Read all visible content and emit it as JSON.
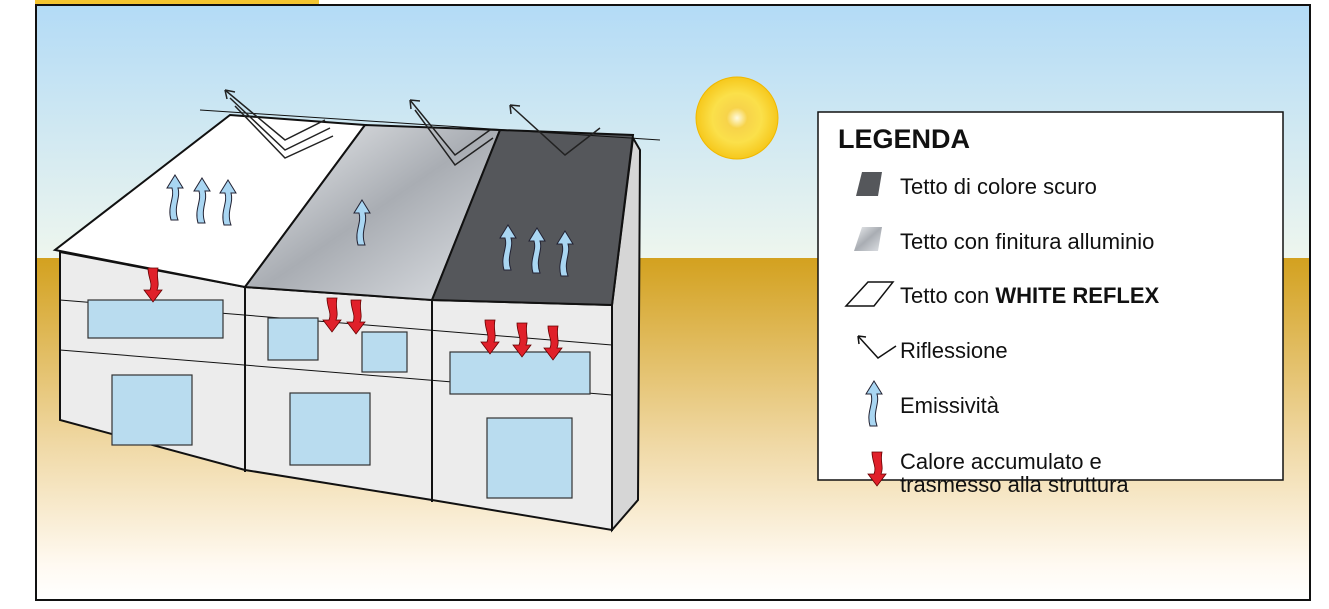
{
  "legend": {
    "title": "LEGENDA",
    "items": [
      {
        "text": "Tetto di colore scuro"
      },
      {
        "text": "Tetto con finitura alluminio"
      },
      {
        "text": "Tetto con ",
        "bold": "WHITE REFLEX"
      },
      {
        "text": "Riflessione"
      },
      {
        "text": "Emissività"
      },
      {
        "lines": [
          "Calore accumulato e",
          "trasmesso alla struttura"
        ]
      }
    ]
  }
}
